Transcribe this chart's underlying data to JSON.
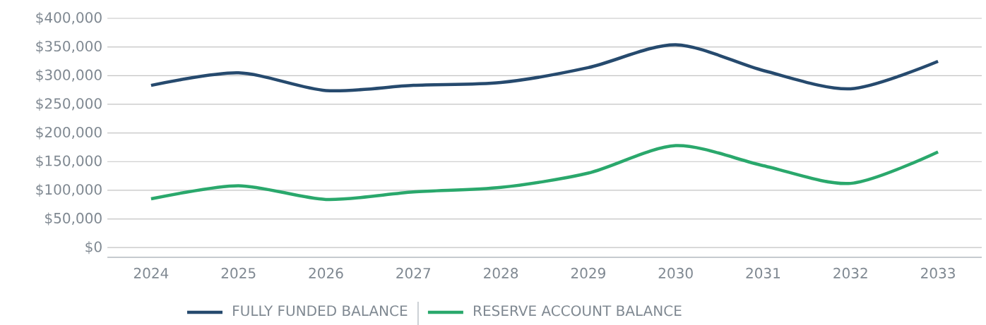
{
  "chart_data": {
    "type": "line",
    "categories": [
      "2024",
      "2025",
      "2026",
      "2027",
      "2028",
      "2029",
      "2030",
      "2031",
      "2032",
      "2033"
    ],
    "series": [
      {
        "name": "FULLY FUNDED BALANCE",
        "color": "#264a6e",
        "values": [
          283000,
          305000,
          274000,
          283000,
          288000,
          314000,
          354000,
          309000,
          277000,
          325000
        ]
      },
      {
        "name": "RESERVE ACCOUNT BALANCE",
        "color": "#2aa86c",
        "values": [
          85000,
          108000,
          84000,
          97000,
          105000,
          130000,
          178000,
          143000,
          112000,
          167000
        ]
      }
    ],
    "ylim": [
      -17000,
      400000
    ],
    "yticks": [
      {
        "value": 0,
        "label": "$0"
      },
      {
        "value": 50000,
        "label": "$50,000"
      },
      {
        "value": 100000,
        "label": "$100,000"
      },
      {
        "value": 150000,
        "label": "$150,000"
      },
      {
        "value": 200000,
        "label": "$200,000"
      },
      {
        "value": 250000,
        "label": "$250,000"
      },
      {
        "value": 300000,
        "label": "$300,000"
      },
      {
        "value": 350000,
        "label": "$350,000"
      },
      {
        "value": 400000,
        "label": "$400,000"
      }
    ],
    "grid": "y",
    "legend": "bottom",
    "marker": "none",
    "line_style": "solid"
  }
}
